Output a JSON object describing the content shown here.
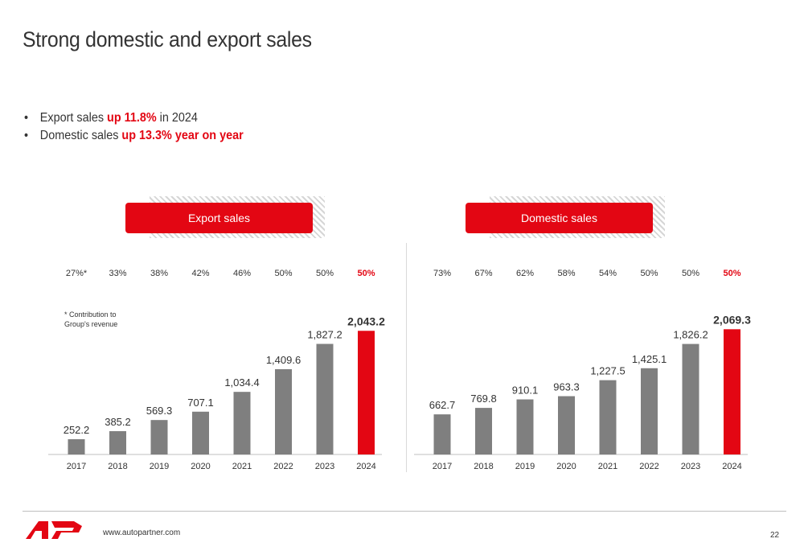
{
  "title": "Strong domestic and export sales",
  "bullets": [
    {
      "dot": "•",
      "pre": "Export sales ",
      "highlight": "up 11.8%",
      "post": " in 2024"
    },
    {
      "dot": "•",
      "pre": "Domestic sales ",
      "highlight": "up 13.3% year on year",
      "post": ""
    }
  ],
  "footnote": {
    "line1": "* Contribution to",
    "line2": "Group's revenue"
  },
  "footer": {
    "website": "www.autopartner.com",
    "page": "22"
  },
  "colors": {
    "accent": "#e30613",
    "bar": "#7f7f7f",
    "text": "#333333"
  },
  "chart_data": [
    {
      "type": "bar",
      "title": "Export sales",
      "categories": [
        "2017",
        "2018",
        "2019",
        "2020",
        "2021",
        "2022",
        "2023",
        "2024"
      ],
      "values": [
        252.2,
        385.2,
        569.3,
        707.1,
        1034.4,
        1409.6,
        1827.2,
        2043.2
      ],
      "value_labels": [
        "252.2",
        "385.2",
        "569.3",
        "707.1",
        "1,034.4",
        "1,409.6",
        "1,827.2",
        "2,043.2"
      ],
      "share_labels": [
        "27%*",
        "33%",
        "38%",
        "42%",
        "46%",
        "50%",
        "50%",
        "50%"
      ],
      "highlight_index": 7,
      "ylim": [
        0,
        2100
      ]
    },
    {
      "type": "bar",
      "title": "Domestic sales",
      "categories": [
        "2017",
        "2018",
        "2019",
        "2020",
        "2021",
        "2022",
        "2023",
        "2024"
      ],
      "values": [
        662.7,
        769.8,
        910.1,
        963.3,
        1227.5,
        1425.1,
        1826.2,
        2069.3
      ],
      "value_labels": [
        "662.7",
        "769.8",
        "910.1",
        "963.3",
        "1,227.5",
        "1,425.1",
        "1,826.2",
        "2,069.3"
      ],
      "share_labels": [
        "73%",
        "67%",
        "62%",
        "58%",
        "54%",
        "50%",
        "50%",
        "50%"
      ],
      "highlight_index": 7,
      "ylim": [
        0,
        2100
      ]
    }
  ]
}
